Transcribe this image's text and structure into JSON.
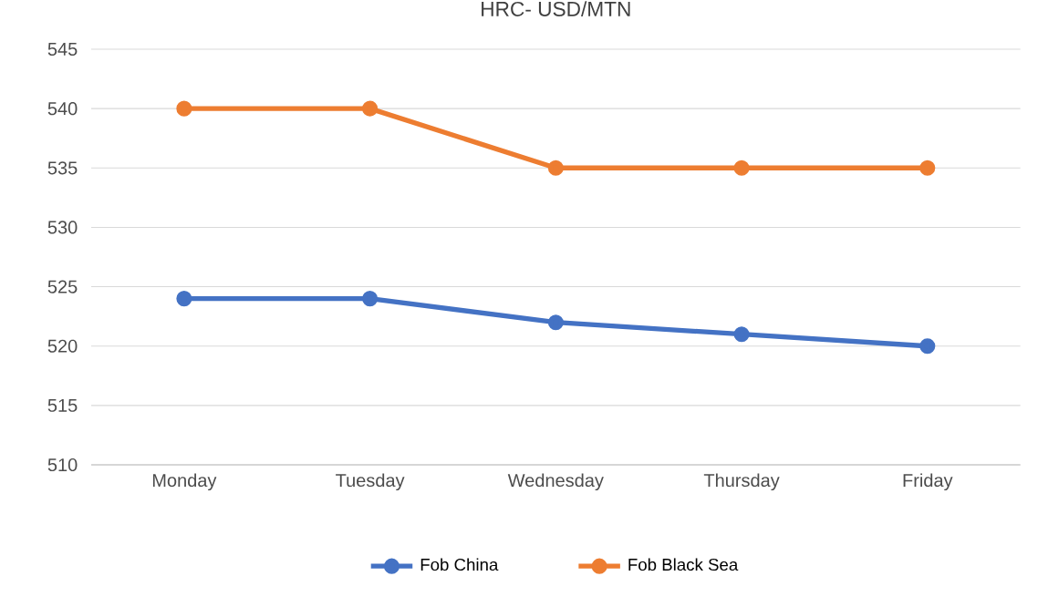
{
  "chart_data": {
    "type": "line",
    "title": "HRC- USD/MTN",
    "categories": [
      "Monday",
      "Tuesday",
      "Wednesday",
      "Thursday",
      "Friday"
    ],
    "series": [
      {
        "name": "Fob China",
        "color": "#4472c4",
        "values": [
          524,
          524,
          522,
          521,
          520
        ]
      },
      {
        "name": "Fob Black Sea",
        "color": "#ed7d31",
        "values": [
          540,
          540,
          535,
          535,
          535
        ]
      }
    ],
    "ylim": [
      510,
      545
    ],
    "yticks": [
      510,
      515,
      520,
      525,
      530,
      535,
      540,
      545
    ],
    "grid": "y",
    "legend": "bottom",
    "marker": "circle",
    "line_style": "solid"
  }
}
